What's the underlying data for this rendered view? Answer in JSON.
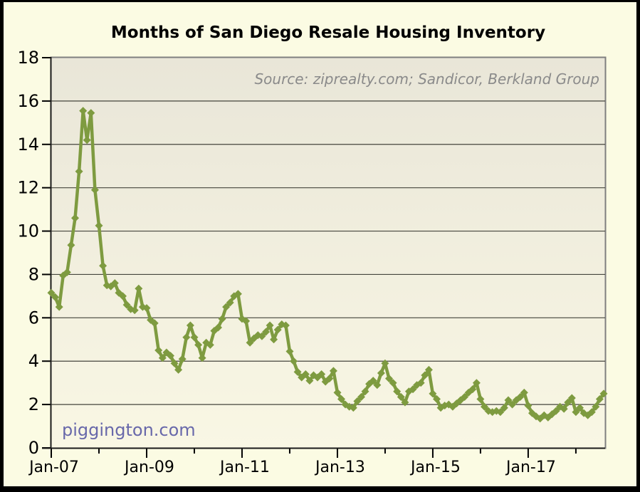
{
  "header": {
    "title": "Months of San Diego Resale Housing Inventory"
  },
  "chart_data": {
    "type": "line",
    "title": "Months of San Diego Resale Housing Inventory",
    "source_note": "Source: ziprealty.com; Sandicor, Berkland Group",
    "watermark": "piggington.com",
    "xlabel": "",
    "ylabel": "",
    "ylim": [
      0,
      18
    ],
    "ytick_step": 2,
    "yticks": [
      0,
      2,
      4,
      6,
      8,
      10,
      12,
      14,
      16,
      18
    ],
    "grid": "horizontal-only",
    "legend": "none",
    "frequency": "monthly",
    "start_month": "Jan-2007",
    "end_month": "Aug-2018",
    "xticks_labeled": [
      {
        "month_index": 0,
        "label": "Jan-07"
      },
      {
        "month_index": 24,
        "label": "Jan-09"
      },
      {
        "month_index": 48,
        "label": "Jan-11"
      },
      {
        "month_index": 72,
        "label": "Jan-13"
      },
      {
        "month_index": 96,
        "label": "Jan-15"
      },
      {
        "month_index": 120,
        "label": "Jan-17"
      }
    ],
    "xticks_minor_month_indices": [
      12,
      36,
      60,
      84,
      108,
      132
    ],
    "series": [
      {
        "name": "Months of resale housing inventory",
        "marker": "diamond",
        "values_by_year": {
          "2007": [
            7.15,
            6.95,
            6.5,
            7.95,
            8.1,
            9.35,
            10.6,
            12.75,
            15.55,
            14.2,
            15.45,
            11.9
          ],
          "2008": [
            10.25,
            8.4,
            7.5,
            7.45,
            7.6,
            7.15,
            7.0,
            6.6,
            6.4,
            6.35,
            7.35,
            6.5
          ],
          "2009": [
            6.45,
            5.9,
            5.75,
            4.5,
            4.15,
            4.4,
            4.25,
            3.9,
            3.6,
            4.1,
            5.1,
            5.65
          ],
          "2010": [
            5.1,
            4.75,
            4.15,
            4.85,
            4.75,
            5.4,
            5.55,
            5.95,
            6.5,
            6.7,
            7.0,
            7.1
          ],
          "2011": [
            5.95,
            5.85,
            4.85,
            5.05,
            5.2,
            5.15,
            5.35,
            5.65,
            5.0,
            5.45,
            5.7,
            5.65
          ],
          "2012": [
            4.45,
            4.0,
            3.5,
            3.25,
            3.4,
            3.1,
            3.35,
            3.25,
            3.4,
            3.05,
            3.2,
            3.55
          ],
          "2013": [
            2.55,
            2.25,
            2.0,
            1.9,
            1.85,
            2.15,
            2.35,
            2.6,
            2.95,
            3.1,
            2.9,
            3.45
          ],
          "2014": [
            3.9,
            3.2,
            3.0,
            2.6,
            2.35,
            2.1,
            2.6,
            2.7,
            2.9,
            3.0,
            3.35,
            3.6
          ],
          "2015": [
            2.5,
            2.25,
            1.85,
            1.95,
            2.0,
            1.9,
            2.05,
            2.2,
            2.35,
            2.55,
            2.7,
            3.0
          ],
          "2016": [
            2.25,
            1.9,
            1.7,
            1.65,
            1.7,
            1.65,
            1.85,
            2.2,
            2.0,
            2.2,
            2.35,
            2.55
          ],
          "2017": [
            1.95,
            1.6,
            1.45,
            1.35,
            1.5,
            1.4,
            1.55,
            1.7,
            1.9,
            1.8,
            2.1,
            2.3
          ],
          "2018": [
            1.65,
            1.85,
            1.6,
            1.5,
            1.65,
            1.9,
            2.25,
            2.5
          ]
        }
      }
    ],
    "colors": {
      "line": "#7E9B40",
      "marker": "#7E9B40",
      "grid": "#45453c",
      "plot_border": "#7f7f7f",
      "axis": "#000000",
      "background": "#FBFBE3",
      "plot_bg_top": "#E9E6D8",
      "plot_bg_bottom": "#F9F7E4",
      "frame": "#000000",
      "title_text": "#000000",
      "source_text": "#8a8a8a",
      "watermark_text": "#6868AA"
    }
  }
}
